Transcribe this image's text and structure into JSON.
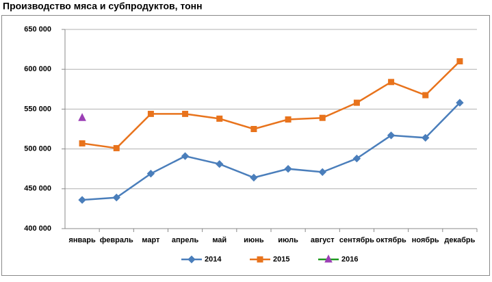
{
  "chart_data": {
    "type": "line",
    "title": "Производство мяса и субпродуктов, тонн",
    "categories": [
      "январь",
      "февраль",
      "март",
      "апрель",
      "май",
      "июнь",
      "июль",
      "август",
      "сентябрь",
      "октябрь",
      "ноябрь",
      "декабрь"
    ],
    "series": [
      {
        "name": "2014",
        "color": "#4a7ebb",
        "marker": "diamond",
        "marker_color": "#4a7ebb",
        "values": [
          436000,
          439000,
          469000,
          491000,
          481000,
          464000,
          475000,
          471000,
          488000,
          517000,
          514000,
          558000
        ]
      },
      {
        "name": "2015",
        "color": "#e8731c",
        "marker": "square",
        "marker_color": "#e8731c",
        "values": [
          507000,
          501000,
          544000,
          544000,
          538000,
          525000,
          537000,
          539000,
          558000,
          584000,
          567500,
          610000
        ]
      },
      {
        "name": "2016",
        "color": "#1f9a1f",
        "marker": "triangle",
        "marker_color": "#9b3fb5",
        "values": [
          539000,
          null,
          null,
          null,
          null,
          null,
          null,
          null,
          null,
          null,
          null,
          null
        ]
      }
    ],
    "ylim": [
      400000,
      650000
    ],
    "yticks": [
      {
        "value": 400000,
        "label": "400 000"
      },
      {
        "value": 450000,
        "label": "450 000"
      },
      {
        "value": 500000,
        "label": "500 000"
      },
      {
        "value": 550000,
        "label": "550 000"
      },
      {
        "value": 600000,
        "label": "600 000"
      },
      {
        "value": 650000,
        "label": "650 000"
      }
    ],
    "grid": true,
    "legend": "bottom"
  }
}
